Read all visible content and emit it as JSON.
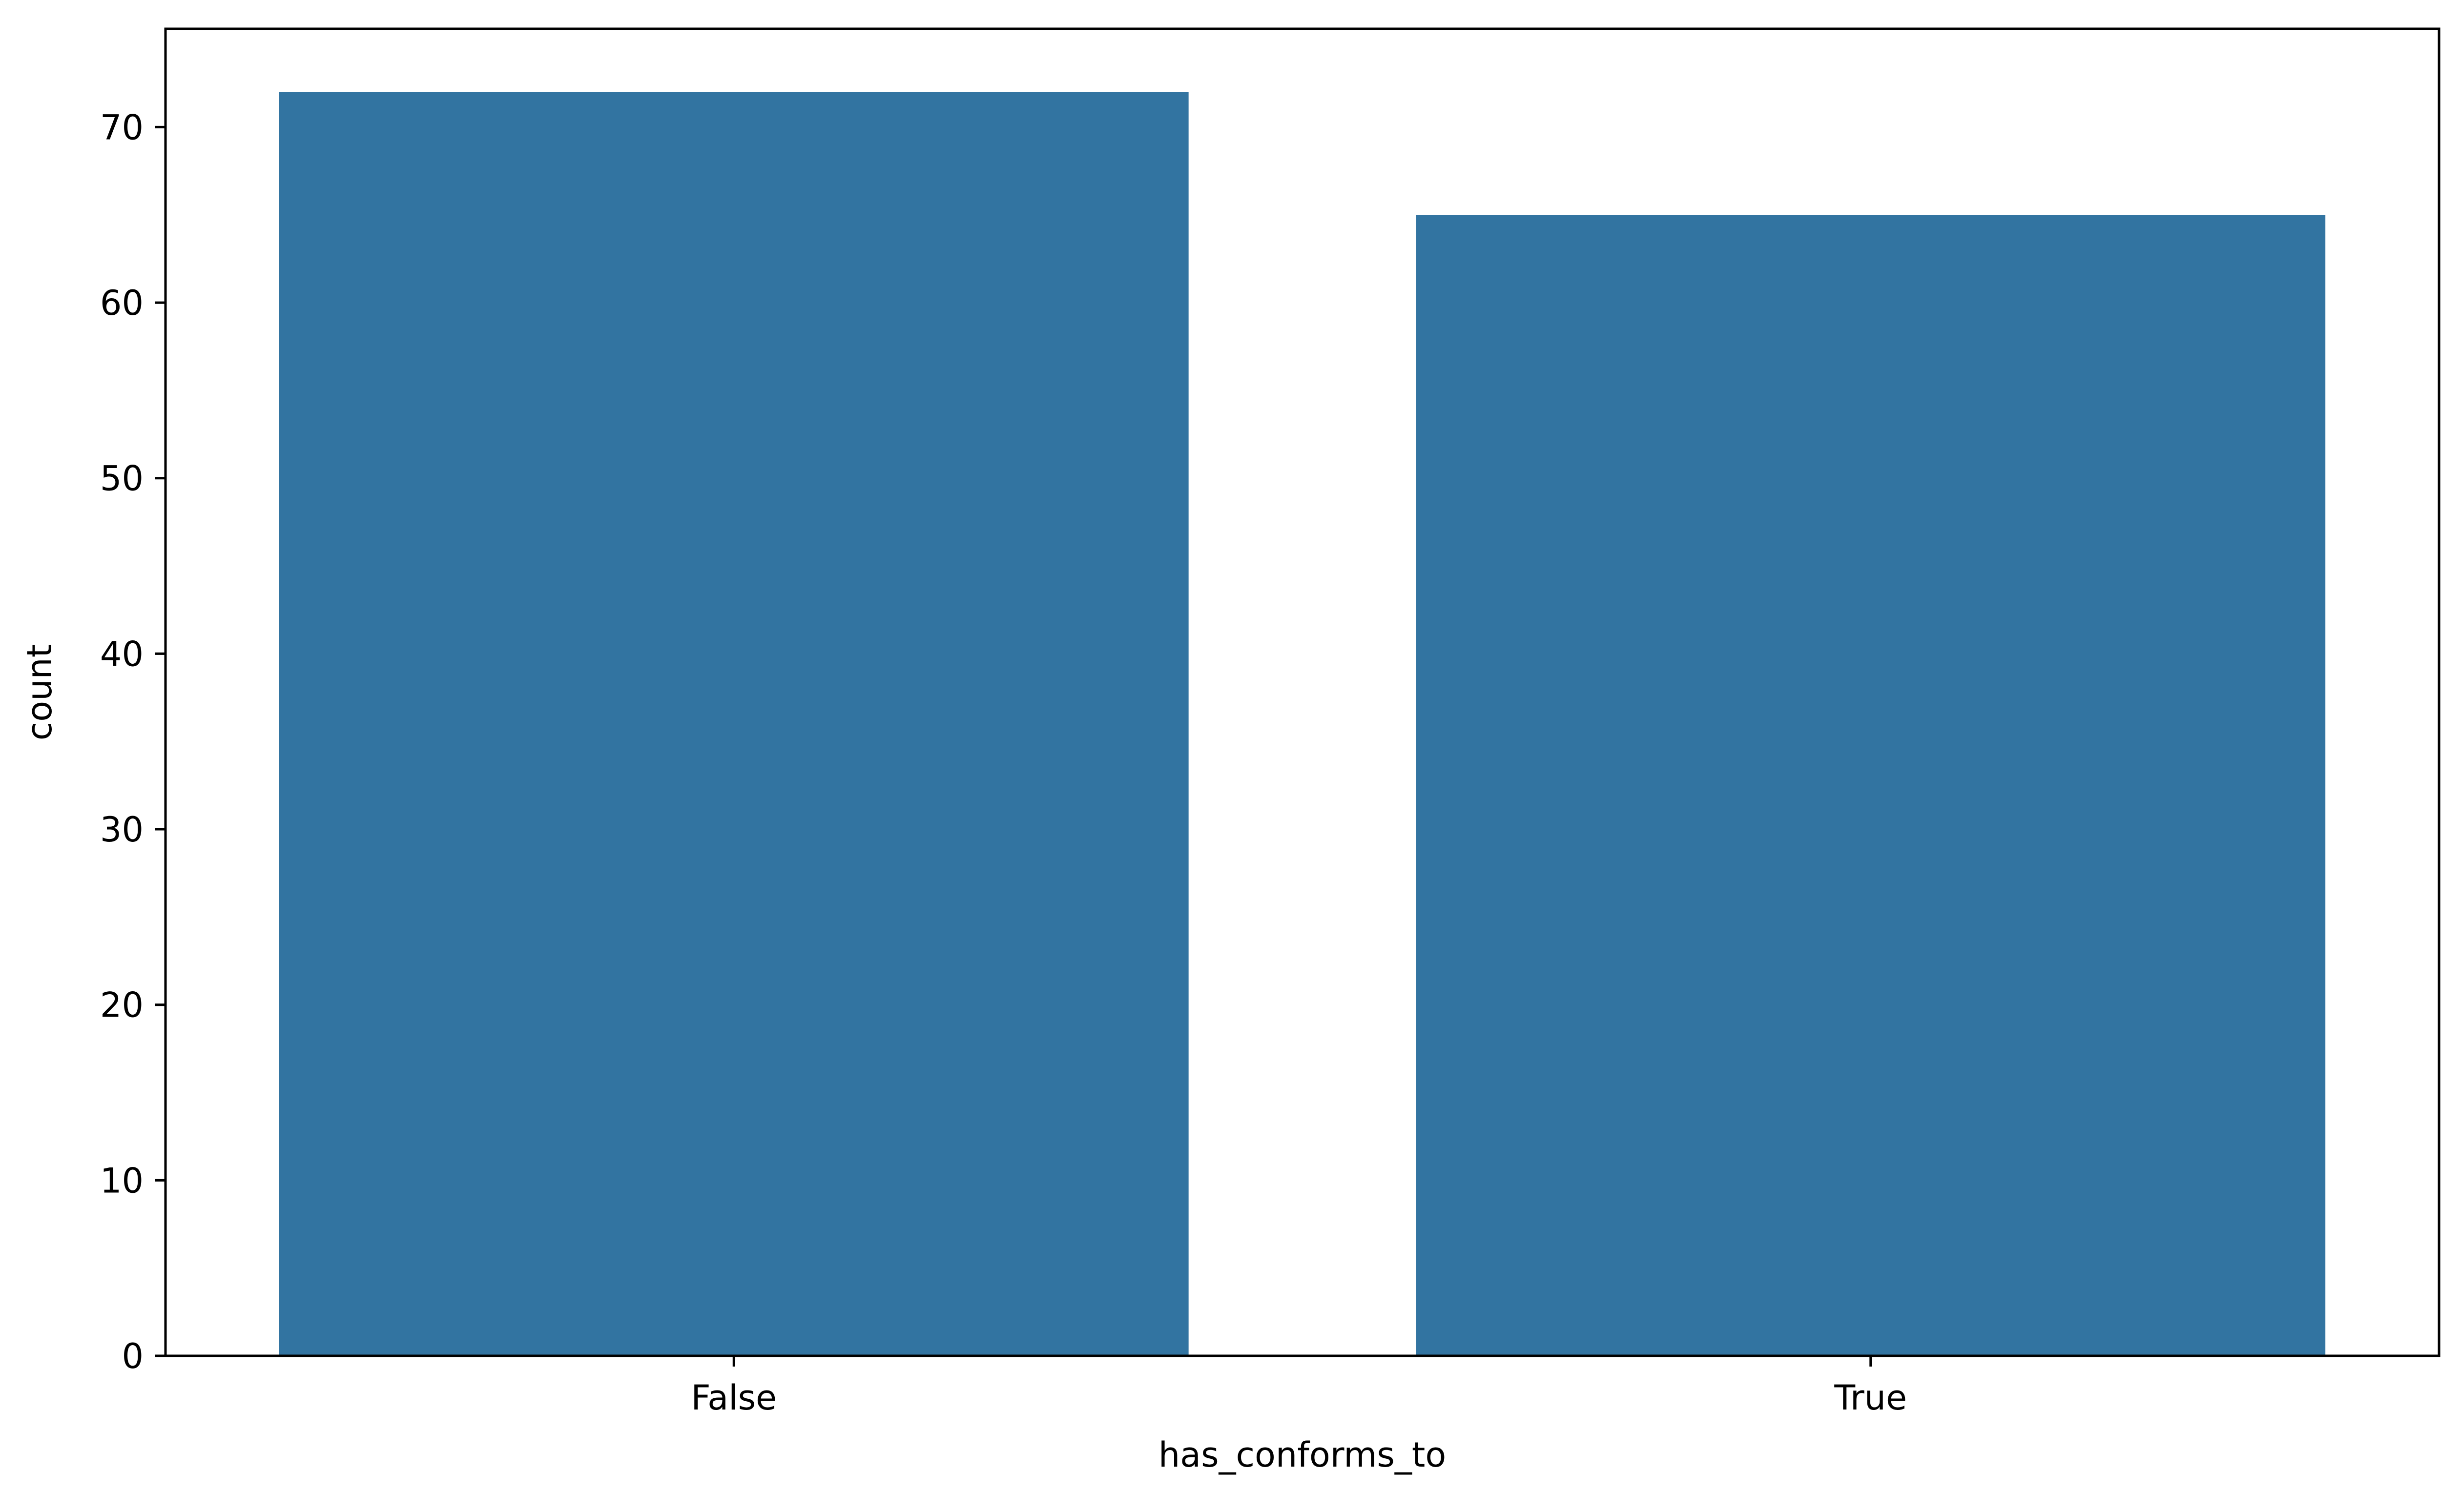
{
  "chart_data": {
    "type": "bar",
    "title": "",
    "xlabel": "has_conforms_to",
    "ylabel": "count",
    "categories": [
      "False",
      "True"
    ],
    "values": [
      72,
      65
    ],
    "ylim": [
      0,
      75.6
    ],
    "yticks": [
      0,
      10,
      20,
      30,
      40,
      50,
      60,
      70
    ],
    "ytick_labels": [
      "0",
      "10",
      "20",
      "30",
      "40",
      "50",
      "60",
      "70"
    ],
    "bar_color": "#3274a1",
    "axis_color": "#000000",
    "background": "#ffffff",
    "grid": false,
    "legend": "none"
  }
}
